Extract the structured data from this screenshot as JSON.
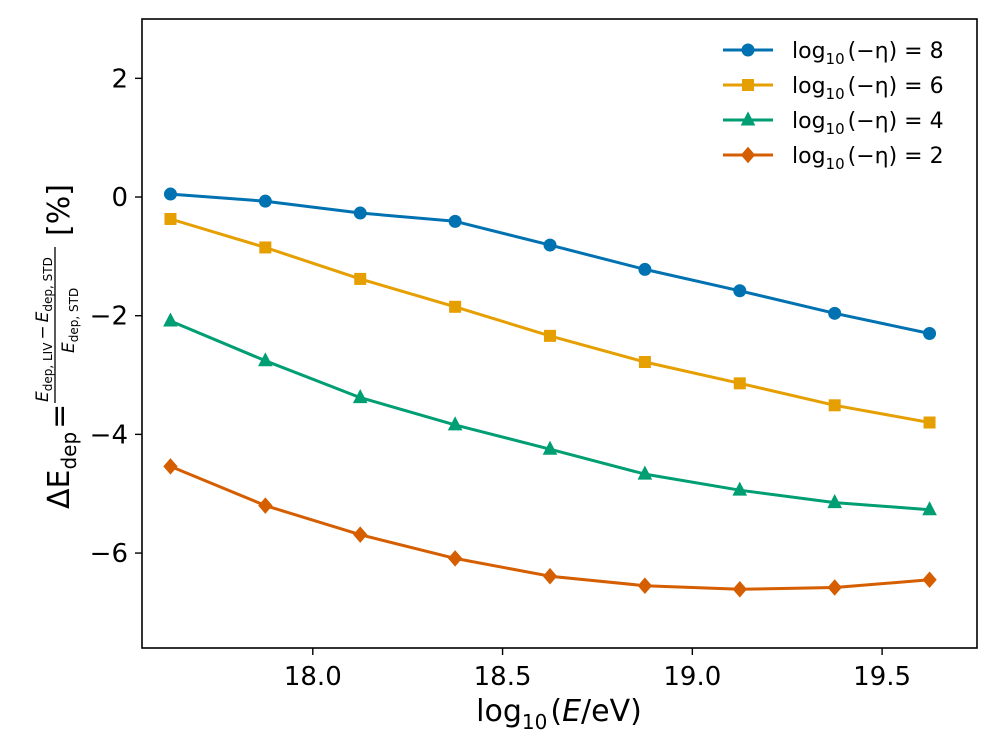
{
  "chart_data": {
    "type": "line",
    "title": "",
    "xlabel": {
      "prefix": "log",
      "sub": "10",
      "paren_open": "(",
      "var": "E",
      "unit": "/eV",
      "paren_close": ")"
    },
    "ylabel": {
      "delta": "ΔE",
      "delta_sub": "dep",
      "equals": "=",
      "num_a": "E",
      "num_a_sub": "dep, LIV",
      "minus": "−",
      "num_b": "E",
      "num_b_sub": "dep, STD",
      "den": "E",
      "den_sub": "dep, STD",
      "unit": "[%]"
    },
    "xlim": [
      17.55,
      19.75
    ],
    "ylim": [
      -7.6,
      3.0
    ],
    "xticks": [
      18.0,
      18.5,
      19.0,
      19.5
    ],
    "xtick_labels": [
      "18.0",
      "18.5",
      "19.0",
      "19.5"
    ],
    "yticks": [
      2,
      0,
      -2,
      -4,
      -6
    ],
    "ytick_labels": [
      "2",
      "0",
      "−2",
      "−4",
      "−6"
    ],
    "grid": false,
    "legend_position": "top-right",
    "x": [
      17.625,
      17.875,
      18.125,
      18.375,
      18.625,
      18.875,
      19.125,
      19.375,
      19.625
    ],
    "series": [
      {
        "name": "log10(−η) = 8",
        "label_prefix": "log",
        "label_sub": "10",
        "label_rest": "(−η) = 8",
        "color": "#0072b2",
        "marker": "circle",
        "values": [
          0.05,
          -0.07,
          -0.27,
          -0.41,
          -0.81,
          -1.22,
          -1.58,
          -1.96,
          -2.3
        ]
      },
      {
        "name": "log10(−η) = 6",
        "label_prefix": "log",
        "label_sub": "10",
        "label_rest": "(−η) = 6",
        "color": "#e69f00",
        "marker": "square",
        "values": [
          -0.37,
          -0.85,
          -1.38,
          -1.85,
          -2.34,
          -2.78,
          -3.14,
          -3.51,
          -3.8
        ]
      },
      {
        "name": "log10(−η) = 4",
        "label_prefix": "log",
        "label_sub": "10",
        "label_rest": "(−η) = 4",
        "color": "#009e73",
        "marker": "triangle",
        "values": [
          -2.09,
          -2.76,
          -3.38,
          -3.84,
          -4.25,
          -4.67,
          -4.94,
          -5.15,
          -5.27
        ]
      },
      {
        "name": "log10(−η) = 2",
        "label_prefix": "log",
        "label_sub": "10",
        "label_rest": "(−η) = 2",
        "color": "#d55e00",
        "marker": "diamond",
        "values": [
          -4.54,
          -5.2,
          -5.69,
          -6.09,
          -6.39,
          -6.55,
          -6.61,
          -6.58,
          -6.45
        ]
      }
    ]
  }
}
